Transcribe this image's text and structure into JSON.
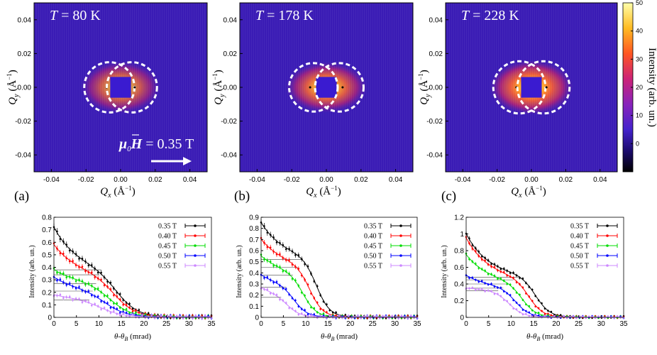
{
  "colors": {
    "bg": "#3a1bb5",
    "ring": "#ffffff",
    "s035": "#000000",
    "s040": "#ff0000",
    "s045": "#00dd00",
    "s050": "#0000ff",
    "s055": "#cc88ff"
  },
  "chart_data": [
    {
      "type": "heatmap",
      "panel": "(a)",
      "title": "T = 80 K",
      "title_var": "T",
      "title_rest": " = 80 K",
      "xlabel": "Q_x (Å^-1)",
      "ylabel": "Q_y (Å^-1)",
      "xlim": [
        -0.05,
        0.05
      ],
      "ylim": [
        -0.05,
        0.05
      ],
      "xticks": [
        "-0.04",
        "-0.02",
        "0.00",
        "0.02",
        "0.04"
      ],
      "yticks": [
        "0.04",
        "0.02",
        "0.00",
        "-0.02",
        "-0.04"
      ],
      "ring_radius": 0.0145,
      "ring_centers": [
        -0.0065,
        0.0065
      ],
      "intensity_scale": 0.45,
      "field_annotation": "= 0.35 T"
    },
    {
      "type": "heatmap",
      "panel": "(b)",
      "title": "T = 178 K",
      "title_var": "T",
      "title_rest": " = 178 K",
      "xlabel": "Q_x (Å^-1)",
      "ylabel": "Q_y (Å^-1)",
      "xlim": [
        -0.05,
        0.05
      ],
      "ylim": [
        -0.05,
        0.05
      ],
      "xticks": [
        "-0.04",
        "-0.02",
        "0.00",
        "0.02",
        "0.04"
      ],
      "yticks": [
        "0.04",
        "0.02",
        "0.00",
        "-0.02",
        "-0.04"
      ],
      "ring_radius": 0.014,
      "ring_centers": [
        -0.0075,
        0.0075
      ],
      "intensity_scale": 0.75
    },
    {
      "type": "heatmap",
      "panel": "(c)",
      "title": "T = 228 K",
      "title_var": "T",
      "title_rest": " = 228 K",
      "xlabel": "Q_x (Å^-1)",
      "ylabel": "Q_y (Å^-1)",
      "xlim": [
        -0.05,
        0.05
      ],
      "ylim": [
        -0.05,
        0.05
      ],
      "xticks": [
        "-0.04",
        "-0.02",
        "0.00",
        "0.02",
        "0.04"
      ],
      "yticks": [
        "0.04",
        "0.02",
        "0.00",
        "-0.02",
        "-0.04"
      ],
      "ring_radius": 0.0152,
      "ring_centers": [
        -0.007,
        0.007
      ],
      "intensity_scale": 1.0,
      "colorbar": {
        "label": "Intensity (arb. un.)",
        "range": [
          -10,
          50
        ],
        "ticks": [
          "50",
          "40",
          "30",
          "20",
          "10",
          "0"
        ]
      }
    },
    {
      "type": "line",
      "panel": "(a)",
      "xlabel": "θ-θB (mrad)",
      "ylabel": "Intensity (arb. un.)",
      "xlim": [
        0,
        35
      ],
      "ylim": [
        0,
        0.8
      ],
      "xticks": [
        "0",
        "5",
        "10",
        "15",
        "20",
        "25",
        "30",
        "35"
      ],
      "yticks": [
        "0",
        "0.1",
        "0.2",
        "0.3",
        "0.4",
        "0.5",
        "0.6",
        "0.7",
        "0.8"
      ],
      "series": [
        {
          "name": "0.35 T",
          "start": 0.72,
          "plateau": 0.38,
          "edge": 14.0,
          "width": 2.4
        },
        {
          "name": "0.40 T",
          "start": 0.58,
          "plateau": 0.34,
          "edge": 13.5,
          "width": 2.4
        },
        {
          "name": "0.45 T",
          "start": 0.38,
          "plateau": 0.27,
          "edge": 12.5,
          "width": 2.4
        },
        {
          "name": "0.50 T",
          "start": 0.32,
          "plateau": 0.21,
          "edge": 11.5,
          "width": 2.4
        },
        {
          "name": "0.55 T",
          "start": 0.18,
          "plateau": 0.14,
          "edge": 10.5,
          "width": 2.4
        }
      ]
    },
    {
      "type": "line",
      "panel": "(b)",
      "xlabel": "θ-θB (mrad)",
      "ylabel": "Intensity (arb. un.)",
      "xlim": [
        0,
        35
      ],
      "ylim": [
        0,
        0.9
      ],
      "xticks": [
        "0",
        "5",
        "10",
        "15",
        "20",
        "25",
        "30",
        "35"
      ],
      "yticks": [
        "0",
        "0.1",
        "0.2",
        "0.3",
        "0.4",
        "0.5",
        "0.6",
        "0.7",
        "0.8",
        "0.9"
      ],
      "series": [
        {
          "name": "0.35 T",
          "start": 0.85,
          "plateau": 0.52,
          "edge": 12.5,
          "width": 1.5
        },
        {
          "name": "0.40 T",
          "start": 0.7,
          "plateau": 0.45,
          "edge": 11.0,
          "width": 1.5
        },
        {
          "name": "0.45 T",
          "start": 0.55,
          "plateau": 0.38,
          "edge": 9.5,
          "width": 1.5
        },
        {
          "name": "0.50 T",
          "start": 0.38,
          "plateau": 0.27,
          "edge": 7.5,
          "width": 1.5
        },
        {
          "name": "0.55 T",
          "start": 0.27,
          "plateau": 0.18,
          "edge": 6.0,
          "width": 1.5
        }
      ]
    },
    {
      "type": "line",
      "panel": "(c)",
      "xlabel": "θ-θB (mrad)",
      "ylabel": "Intensity (arb. un.)",
      "xlim": [
        0,
        35
      ],
      "ylim": [
        0,
        1.2
      ],
      "xticks": [
        "0",
        "5",
        "10",
        "15",
        "20",
        "25",
        "30",
        "35"
      ],
      "yticks": [
        "0",
        "0.2",
        "0.4",
        "0.6",
        "0.8",
        "1",
        "1.2"
      ],
      "series": [
        {
          "name": "0.35 T",
          "start": 1.0,
          "plateau": 0.48,
          "edge": 15.5,
          "width": 1.6
        },
        {
          "name": "0.40 T",
          "start": 0.95,
          "plateau": 0.45,
          "edge": 14.0,
          "width": 1.6
        },
        {
          "name": "0.45 T",
          "start": 0.75,
          "plateau": 0.4,
          "edge": 12.5,
          "width": 1.6
        },
        {
          "name": "0.50 T",
          "start": 0.5,
          "plateau": 0.35,
          "edge": 11.0,
          "width": 1.6
        },
        {
          "name": "0.55 T",
          "start": 0.35,
          "plateau": 0.32,
          "edge": 9.5,
          "width": 1.6
        }
      ]
    }
  ]
}
